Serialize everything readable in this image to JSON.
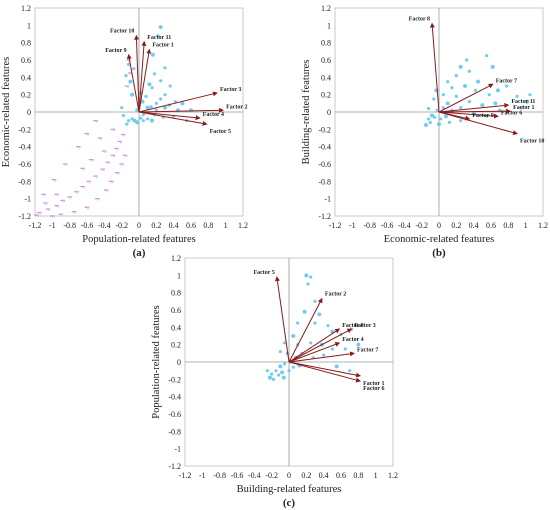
{
  "chart_data": [
    {
      "type": "scatter",
      "panel_label": "(a)",
      "xlabel": "Population-related features",
      "ylabel": "Economic-related features",
      "xlim": [
        -1.2,
        1.2
      ],
      "ylim": [
        -1.2,
        1.2
      ],
      "ticks": [
        "-1.2",
        "-1",
        "-0.8",
        "-0.6",
        "-0.4",
        "-0.2",
        "0",
        "0.2",
        "0.4",
        "0.6",
        "0.8",
        "1",
        "1.2"
      ],
      "vectors": [
        {
          "name": "Factor 10",
          "x": -0.03,
          "y": 0.88
        },
        {
          "name": "Factor 11",
          "x": 0.06,
          "y": 0.81
        },
        {
          "name": "Factor 1",
          "x": 0.12,
          "y": 0.72
        },
        {
          "name": "Factor 9",
          "x": -0.12,
          "y": 0.66
        },
        {
          "name": "Factor 3",
          "x": 0.9,
          "y": 0.22
        },
        {
          "name": "Factor 2",
          "x": 0.97,
          "y": 0.02
        },
        {
          "name": "Factor 4",
          "x": 0.7,
          "y": -0.07
        },
        {
          "name": "Factor 5",
          "x": 0.78,
          "y": -0.14
        }
      ],
      "points": [
        [
          0.25,
          0.98
        ],
        [
          0.3,
          0.51
        ],
        [
          0.22,
          0.88
        ],
        [
          0.16,
          0.66
        ],
        [
          0.18,
          0.44
        ],
        [
          0.25,
          0.36
        ],
        [
          0.12,
          0.32
        ],
        [
          0.3,
          0.2
        ],
        [
          0.42,
          0.12
        ],
        [
          0.5,
          0.1
        ],
        [
          0.35,
          0.08
        ],
        [
          0.2,
          0.1
        ],
        [
          0.1,
          0.05
        ],
        [
          0.05,
          -0.03
        ],
        [
          0.02,
          -0.07
        ],
        [
          -0.05,
          -0.1
        ],
        [
          -0.08,
          -0.08
        ],
        [
          -0.12,
          -0.1
        ],
        [
          -0.02,
          -0.12
        ],
        [
          0.05,
          -0.1
        ],
        [
          0.1,
          -0.08
        ],
        [
          0.15,
          -0.1
        ],
        [
          0.2,
          0.02
        ],
        [
          0.25,
          0.15
        ],
        [
          0.3,
          0.05
        ],
        [
          0.4,
          -0.05
        ],
        [
          0.55,
          -0.1
        ],
        [
          -0.1,
          0.35
        ],
        [
          -0.12,
          0.55
        ],
        [
          -0.15,
          0.42
        ],
        [
          -0.08,
          0.2
        ],
        [
          0.08,
          0.18
        ],
        [
          0.14,
          0.06
        ],
        [
          -0.02,
          0.02
        ],
        [
          -0.2,
          0.05
        ],
        [
          -0.14,
          -0.14
        ],
        [
          0.02,
          0.22
        ],
        [
          0.18,
          -0.03
        ],
        [
          0.28,
          -0.06
        ],
        [
          0.6,
          0.02
        ],
        [
          0.15,
          0.28
        ],
        [
          -0.06,
          0.5
        ],
        [
          0.04,
          0.12
        ],
        [
          0.36,
          0.3
        ],
        [
          -0.18,
          -0.04
        ],
        [
          0.45,
          0.02
        ]
      ],
      "streak_points": [
        [
          -1.15,
          -1.16
        ],
        [
          -1.05,
          -1.12
        ],
        [
          -0.95,
          -1.08
        ],
        [
          -0.88,
          -1.02
        ],
        [
          -0.8,
          -0.98
        ],
        [
          -0.72,
          -0.92
        ],
        [
          -0.65,
          -0.86
        ],
        [
          -0.58,
          -0.8
        ],
        [
          -0.5,
          -0.74
        ],
        [
          -0.42,
          -0.66
        ],
        [
          -0.36,
          -0.58
        ],
        [
          -0.3,
          -0.5
        ],
        [
          -0.26,
          -0.42
        ],
        [
          -0.22,
          -0.34
        ],
        [
          -0.18,
          -0.26
        ],
        [
          -0.6,
          -0.25
        ],
        [
          -0.7,
          -0.4
        ],
        [
          -0.85,
          -0.6
        ],
        [
          -0.98,
          -0.78
        ],
        [
          -1.1,
          -0.95
        ],
        [
          -0.5,
          -0.1
        ],
        [
          -0.45,
          -0.3
        ],
        [
          -0.3,
          -0.2
        ],
        [
          -1.18,
          -1.19
        ],
        [
          -1.0,
          -1.2
        ],
        [
          -0.9,
          -1.18
        ],
        [
          -0.75,
          -1.15
        ],
        [
          -0.6,
          -1.1
        ],
        [
          -0.48,
          -1.0
        ],
        [
          -0.38,
          -0.9
        ],
        [
          -0.32,
          -0.8
        ],
        [
          -0.25,
          -0.7
        ],
        [
          -0.2,
          -0.6
        ],
        [
          -0.16,
          -0.5
        ],
        [
          -0.4,
          -0.45
        ],
        [
          -0.55,
          -0.55
        ],
        [
          -0.65,
          -0.65
        ],
        [
          -0.95,
          -0.95
        ],
        [
          -1.08,
          -1.05
        ],
        [
          -0.1,
          0.45
        ],
        [
          -0.12,
          0.6
        ],
        [
          -0.14,
          0.3
        ]
      ]
    },
    {
      "type": "scatter",
      "panel_label": "(b)",
      "xlabel": "Economic-related features",
      "ylabel": "Building-related features",
      "xlim": [
        -1.2,
        1.2
      ],
      "ylim": [
        -1.2,
        1.2
      ],
      "ticks": [
        "-1.2",
        "-1",
        "-0.8",
        "-0.6",
        "-0.4",
        "-0.2",
        "0",
        "0.2",
        "0.4",
        "0.6",
        "0.8",
        "1",
        "1.2"
      ],
      "vectors": [
        {
          "name": "Factor 8",
          "x": -0.08,
          "y": 1.02
        },
        {
          "name": "Factor 7",
          "x": 0.62,
          "y": 0.32
        },
        {
          "name": "Factor 11",
          "x": 0.8,
          "y": 0.08
        },
        {
          "name": "Factor 1",
          "x": 0.82,
          "y": 0.01
        },
        {
          "name": "Factor 6",
          "x": 0.68,
          "y": -0.05
        },
        {
          "name": "Factor 9",
          "x": 0.35,
          "y": -0.08
        },
        {
          "name": "Factor 10",
          "x": 0.9,
          "y": -0.25
        }
      ],
      "points": [
        [
          0.25,
          0.52
        ],
        [
          0.35,
          0.47
        ],
        [
          0.55,
          0.65
        ],
        [
          0.62,
          0.52
        ],
        [
          0.2,
          0.42
        ],
        [
          0.1,
          0.35
        ],
        [
          0.3,
          0.3
        ],
        [
          0.42,
          0.25
        ],
        [
          0.58,
          0.2
        ],
        [
          0.68,
          0.25
        ],
        [
          0.78,
          0.3
        ],
        [
          0.9,
          0.18
        ],
        [
          1.02,
          0.12
        ],
        [
          0.95,
          0.05
        ],
        [
          0.7,
          0.02
        ],
        [
          0.5,
          0.08
        ],
        [
          0.35,
          0.12
        ],
        [
          0.2,
          0.18
        ],
        [
          0.1,
          0.1
        ],
        [
          0.05,
          0.05
        ],
        [
          -0.02,
          0.02
        ],
        [
          -0.08,
          -0.04
        ],
        [
          -0.12,
          -0.08
        ],
        [
          -0.1,
          -0.12
        ],
        [
          -0.15,
          -0.15
        ],
        [
          -0.05,
          -0.06
        ],
        [
          0.02,
          -0.08
        ],
        [
          0.08,
          -0.05
        ],
        [
          0.15,
          0.02
        ],
        [
          0.25,
          0.05
        ],
        [
          0.4,
          -0.02
        ],
        [
          0.55,
          -0.05
        ],
        [
          -0.06,
          0.15
        ],
        [
          -0.03,
          0.25
        ],
        [
          0.05,
          0.2
        ],
        [
          0.15,
          0.28
        ],
        [
          0.45,
          0.35
        ],
        [
          0.32,
          0.6
        ],
        [
          -0.12,
          0.04
        ],
        [
          0.0,
          -0.14
        ],
        [
          0.12,
          -0.12
        ],
        [
          0.25,
          -0.1
        ],
        [
          0.65,
          0.1
        ],
        [
          1.05,
          0.2
        ]
      ]
    },
    {
      "type": "scatter",
      "panel_label": "(c)",
      "xlabel": "Building-related features",
      "ylabel": "Population-related features",
      "xlim": [
        -1.2,
        1.2
      ],
      "ylim": [
        -1.2,
        1.2
      ],
      "ticks": [
        "-1.2",
        "-1",
        "-0.8",
        "-0.6",
        "-0.4",
        "-0.2",
        "0",
        "0.2",
        "0.4",
        "0.6",
        "0.8",
        "1",
        "1.2"
      ],
      "vectors": [
        {
          "name": "Factor 5",
          "x": -0.14,
          "y": 0.98
        },
        {
          "name": "Factor 2",
          "x": 0.38,
          "y": 0.73
        },
        {
          "name": "Factor 8",
          "x": 0.58,
          "y": 0.38
        },
        {
          "name": "Factor 3",
          "x": 0.72,
          "y": 0.38
        },
        {
          "name": "Factor 4",
          "x": 0.58,
          "y": 0.22
        },
        {
          "name": "Factor 7",
          "x": 0.75,
          "y": 0.1
        },
        {
          "name": "Factor 1",
          "x": 0.82,
          "y": -0.16
        },
        {
          "name": "Factor 6",
          "x": 0.82,
          "y": -0.22
        }
      ],
      "points": [
        [
          0.2,
          1.0
        ],
        [
          0.25,
          0.98
        ],
        [
          0.22,
          0.9
        ],
        [
          0.35,
          0.55
        ],
        [
          0.3,
          0.45
        ],
        [
          0.45,
          0.42
        ],
        [
          0.5,
          0.35
        ],
        [
          0.6,
          0.32
        ],
        [
          0.72,
          0.38
        ],
        [
          0.8,
          0.2
        ],
        [
          0.65,
          0.15
        ],
        [
          0.5,
          0.15
        ],
        [
          0.38,
          0.2
        ],
        [
          0.25,
          0.22
        ],
        [
          0.15,
          0.1
        ],
        [
          0.08,
          0.05
        ],
        [
          0.02,
          0.0
        ],
        [
          -0.05,
          -0.02
        ],
        [
          -0.1,
          -0.05
        ],
        [
          -0.15,
          -0.1
        ],
        [
          -0.2,
          -0.14
        ],
        [
          -0.22,
          -0.18
        ],
        [
          -0.18,
          -0.2
        ],
        [
          -0.12,
          -0.15
        ],
        [
          -0.08,
          -0.12
        ],
        [
          0.0,
          -0.1
        ],
        [
          0.05,
          -0.06
        ],
        [
          0.12,
          -0.04
        ],
        [
          -0.02,
          0.1
        ],
        [
          -0.05,
          0.22
        ],
        [
          0.05,
          0.3
        ],
        [
          0.1,
          0.45
        ],
        [
          -0.1,
          0.12
        ],
        [
          0.18,
          0.58
        ],
        [
          0.28,
          0.05
        ],
        [
          0.4,
          0.08
        ],
        [
          0.55,
          -0.05
        ],
        [
          0.7,
          -0.1
        ],
        [
          -0.25,
          -0.1
        ],
        [
          -0.06,
          -0.18
        ],
        [
          0.1,
          0.2
        ],
        [
          0.3,
          0.7
        ]
      ]
    }
  ],
  "figure": {
    "colors": {
      "point": "#5fc8ee",
      "point_light": "#a8e4f6",
      "vector": "#8b1a1a",
      "streak": "#ee44cc",
      "axis": "#888888",
      "cross": "#999999"
    }
  }
}
